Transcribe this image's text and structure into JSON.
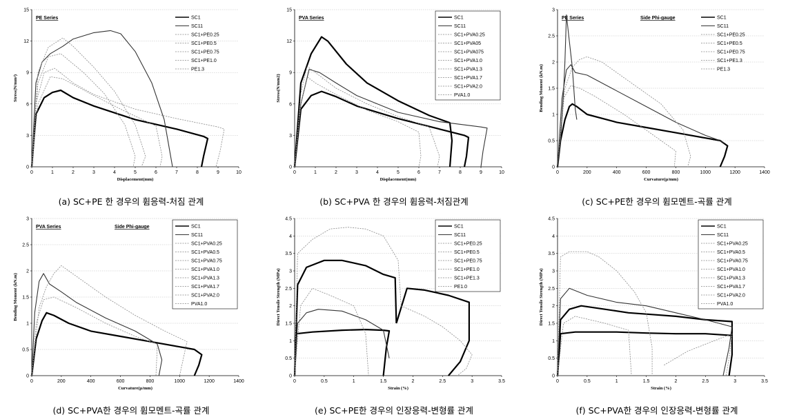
{
  "colors": {
    "bold": "#000000",
    "mid": "#333333",
    "light": "#888888",
    "grid": "#bbbbbb"
  },
  "chart_data": [
    {
      "type": "line",
      "caption": "(a) SC+PE 한 경우의 휨응력-처짐 관계",
      "tag": "PE Series",
      "tag2": "",
      "xlabel": "Displacement(mm)",
      "ylabel": "Stress(N/mm²)",
      "xlim": [
        0,
        10
      ],
      "ylim": [
        0,
        15
      ],
      "xticks": [
        0,
        1,
        2,
        3,
        4,
        5,
        6,
        7,
        8,
        9,
        10
      ],
      "yticks": [
        0,
        3,
        6,
        9,
        12,
        15
      ],
      "legend_boxed": false,
      "legend": [
        "SC1",
        "SC11",
        "SC1+PE0.25",
        "SC1+PE0.5",
        "SC1+PE0.75",
        "SC1+PE1.0",
        "PE1.3"
      ],
      "series": [
        {
          "style": "bold",
          "x": [
            0,
            0.2,
            0.6,
            1.0,
            1.4,
            2.0,
            3.0,
            5.0,
            7.0,
            8.3,
            8.5,
            8.3,
            8.2
          ],
          "y": [
            0,
            5,
            6.6,
            7.1,
            7.3,
            6.6,
            5.8,
            4.5,
            3.6,
            2.9,
            2.7,
            1.0,
            0
          ]
        },
        {
          "style": "mid",
          "x": [
            0,
            0.2,
            0.5,
            0.9,
            1.5,
            2.0,
            3.0,
            3.8,
            4.3,
            5.0,
            5.8,
            6.4,
            6.8
          ],
          "y": [
            0,
            8,
            10,
            10.8,
            11.5,
            12.2,
            12.8,
            13.0,
            12.7,
            11.0,
            8.0,
            4.5,
            0
          ]
        },
        {
          "style": "light",
          "x": [
            0,
            0.2,
            0.6,
            1.1,
            1.5,
            2.0,
            3.0,
            5.0,
            7.0,
            9.0,
            9.3,
            9.1,
            8.9
          ],
          "y": [
            0,
            6,
            9.0,
            9.4,
            8.8,
            8.0,
            6.9,
            5.5,
            4.6,
            3.8,
            3.6,
            1.5,
            0
          ]
        },
        {
          "style": "light",
          "x": [
            0,
            0.3,
            0.8,
            1.5,
            2.0,
            3.0,
            4.0,
            5.0,
            5.5,
            5.3
          ],
          "y": [
            0,
            9,
            11.4,
            12.3,
            11.5,
            9.5,
            7.2,
            4.0,
            1.0,
            0
          ]
        },
        {
          "style": "light",
          "x": [
            0,
            0.3,
            0.8,
            1.4,
            2.5,
            3.5,
            4.5,
            5.0,
            4.9
          ],
          "y": [
            0,
            8,
            10.5,
            10.8,
            9.0,
            7.0,
            4.0,
            1.0,
            0
          ]
        },
        {
          "style": "light",
          "x": [
            0,
            0.3,
            0.9,
            1.5,
            3.0,
            4.5,
            6.0,
            6.3,
            6.2
          ],
          "y": [
            0,
            6,
            8.6,
            8.4,
            6.8,
            5.3,
            3.9,
            1.0,
            0
          ]
        }
      ]
    },
    {
      "type": "line",
      "caption": "(b) SC+PVA 한 경우의 휨응력-처짐관계",
      "tag": "PVA Series",
      "tag2": "",
      "xlabel": "Displacement(mm)",
      "ylabel": "Stress(N/mm2)",
      "xlim": [
        0,
        10
      ],
      "ylim": [
        0,
        15
      ],
      "xticks": [
        0,
        1,
        2,
        3,
        4,
        5,
        6,
        7,
        8,
        9,
        10
      ],
      "yticks": [
        0,
        3,
        6,
        9,
        12,
        15
      ],
      "legend_boxed": true,
      "legend": [
        "SC1",
        "SC11",
        "SC1+PVA0.25",
        "SC1+PVA05",
        "SC1+PVA075",
        "SC1+PVA1.0",
        "SC1+PVA1.3",
        "SC1+PVA1.7",
        "SC1+PVA2.0",
        "PVA1.0"
      ],
      "series": [
        {
          "style": "bold",
          "x": [
            0,
            0.3,
            0.8,
            1.3,
            2.0,
            3.0,
            5.0,
            7.0,
            8.2,
            8.4,
            8.3,
            8.2
          ],
          "y": [
            0,
            5.5,
            6.8,
            7.2,
            6.7,
            5.8,
            4.6,
            3.6,
            3.0,
            2.8,
            1.0,
            0
          ]
        },
        {
          "style": "bold",
          "x": [
            0,
            0.3,
            0.8,
            1.3,
            1.6,
            2.5,
            3.5,
            5.0,
            6.5,
            7.5,
            7.6,
            7.5
          ],
          "y": [
            0,
            8,
            10.8,
            12.4,
            12.0,
            9.8,
            8.0,
            6.3,
            4.9,
            4.2,
            2.5,
            0
          ]
        },
        {
          "style": "mid",
          "x": [
            0,
            0.3,
            0.7,
            1.2,
            2.0,
            3.0,
            5.0,
            7.0,
            9.0,
            9.3,
            9.1,
            9.0
          ],
          "y": [
            0,
            6,
            9.3,
            9.0,
            8.0,
            6.8,
            5.2,
            4.3,
            3.8,
            3.7,
            1.5,
            0
          ]
        },
        {
          "style": "light",
          "x": [
            0,
            0.3,
            0.6,
            1.0,
            2.0,
            3.5,
            5.0,
            6.5,
            7.0,
            6.9
          ],
          "y": [
            0,
            7,
            9.6,
            9.0,
            7.5,
            6.0,
            4.8,
            3.8,
            1.0,
            0
          ]
        },
        {
          "style": "light",
          "x": [
            0,
            0.3,
            0.6,
            1.0,
            2.0,
            3.5,
            5.0,
            6.0,
            6.1,
            6.0
          ],
          "y": [
            0,
            6,
            8.6,
            8.0,
            6.9,
            5.4,
            4.3,
            3.3,
            1.0,
            0
          ]
        }
      ]
    },
    {
      "type": "line",
      "caption": "(c) SC+PE한 경우의 휨모멘트-곡률 관계",
      "tag": "PE Series",
      "tag2": "Side Phi-gauge",
      "xlabel": "Curvature(μ/mm)",
      "ylabel": "Bending Moment (kN.m)",
      "xlim": [
        0,
        1400
      ],
      "ylim": [
        0,
        3
      ],
      "xticks": [
        0,
        200,
        400,
        600,
        800,
        1000,
        1200,
        1400
      ],
      "yticks": [
        0,
        0.5,
        1,
        1.5,
        2,
        2.5,
        3
      ],
      "legend_boxed": false,
      "legend": [
        "SC1",
        "SC11",
        "SC1+PE0.25",
        "SC1+PE0.5",
        "SC1+PE0.75",
        "SC1+PE1.3",
        "PE1.3"
      ],
      "series": [
        {
          "style": "bold",
          "x": [
            0,
            20,
            50,
            80,
            100,
            130,
            200,
            400,
            600,
            800,
            1000,
            1100,
            1150,
            1130,
            1100
          ],
          "y": [
            0,
            0.5,
            0.9,
            1.15,
            1.2,
            1.15,
            1.0,
            0.85,
            0.75,
            0.65,
            0.55,
            0.5,
            0.4,
            0.2,
            0
          ]
        },
        {
          "style": "mid",
          "x": [
            0,
            30,
            60,
            90,
            120,
            200,
            400,
            600,
            800,
            1000,
            1100,
            1130
          ],
          "y": [
            0,
            1.3,
            1.85,
            1.95,
            1.8,
            1.75,
            1.45,
            1.15,
            0.85,
            0.6,
            0.5,
            0.45
          ]
        },
        {
          "style": "light",
          "x": [
            0,
            50,
            100,
            150,
            200,
            300,
            500,
            700,
            850,
            900,
            880
          ],
          "y": [
            0,
            1.5,
            1.9,
            2.05,
            2.1,
            2.0,
            1.6,
            1.2,
            0.7,
            0.2,
            0
          ]
        },
        {
          "style": "light",
          "x": [
            0,
            40,
            90,
            150,
            250,
            450,
            650,
            800,
            790
          ],
          "y": [
            0,
            1.3,
            1.55,
            1.5,
            1.35,
            1.0,
            0.6,
            0.3,
            0
          ]
        },
        {
          "style": "mid",
          "x": [
            0,
            20,
            40,
            50,
            60,
            80,
            100,
            120,
            130
          ],
          "y": [
            0,
            0.5,
            1.4,
            2.0,
            2.9,
            2.4,
            1.9,
            1.1,
            0.9
          ]
        }
      ]
    },
    {
      "type": "line",
      "caption": "(d) SC+PVA한 경우의 휨모멘트-곡률 관계",
      "tag": "PVA Series",
      "tag2": "Side Phi-gauge",
      "xlabel": "Curvature(μ/mm)",
      "ylabel": "Bending Moment (kN.m)",
      "xlim": [
        0,
        1400
      ],
      "ylim": [
        0,
        3
      ],
      "xticks": [
        0,
        200,
        400,
        600,
        800,
        1000,
        1200,
        1400
      ],
      "yticks": [
        0,
        0.5,
        1,
        1.5,
        2,
        2.5,
        3
      ],
      "legend_boxed": true,
      "legend": [
        "SC1",
        "SC11",
        "SC1+PVA0.25",
        "SC1+PVA0.5",
        "SC1+PVA0.75",
        "SC1+PVA1.0",
        "SC1+PVA1.3",
        "SC1+PVA1.7",
        "SC1+PVA2.0",
        "PVA1.0"
      ],
      "series": [
        {
          "style": "bold",
          "x": [
            0,
            30,
            70,
            100,
            150,
            250,
            400,
            600,
            800,
            1000,
            1100,
            1150,
            1130,
            1100
          ],
          "y": [
            0,
            0.7,
            1.05,
            1.2,
            1.15,
            1.0,
            0.85,
            0.75,
            0.65,
            0.55,
            0.5,
            0.4,
            0.2,
            0
          ]
        },
        {
          "style": "mid",
          "x": [
            0,
            20,
            50,
            80,
            120,
            200,
            300,
            500,
            700,
            850,
            880,
            860
          ],
          "y": [
            0,
            1.2,
            1.8,
            1.95,
            1.75,
            1.6,
            1.4,
            1.1,
            0.85,
            0.6,
            0.3,
            0
          ]
        },
        {
          "style": "light",
          "x": [
            0,
            50,
            100,
            150,
            200,
            300,
            500,
            700,
            900,
            1050,
            1000
          ],
          "y": [
            0,
            1.3,
            1.7,
            1.95,
            2.1,
            1.9,
            1.5,
            1.15,
            0.85,
            0.65,
            0
          ]
        },
        {
          "style": "light",
          "x": [
            0,
            30,
            80,
            150,
            300,
            500,
            700,
            850,
            840
          ],
          "y": [
            0,
            1.0,
            1.45,
            1.5,
            1.3,
            1.0,
            0.75,
            0.6,
            0
          ]
        }
      ]
    },
    {
      "type": "line",
      "caption": "(e) SC+PE한 경우의 인장응력-변형률 관계",
      "tag": "",
      "tag2": "",
      "xlabel": "Strain (%)",
      "ylabel": "Direct Tensile Strength (MPa)",
      "xlim": [
        0,
        3.5
      ],
      "ylim": [
        0,
        4.5
      ],
      "xticks": [
        0,
        0.5,
        1,
        1.5,
        2,
        2.5,
        3,
        3.5
      ],
      "yticks": [
        0,
        0.5,
        1,
        1.5,
        2,
        2.5,
        3,
        3.5,
        4,
        4.5
      ],
      "legend_boxed": true,
      "legend": [
        "SC1",
        "SC11",
        "SC1+PE0.25",
        "SC1+PE0.5",
        "SC1+PE0.75",
        "SC1+PE1.0",
        "SC1+PE1.3",
        "PE1.0"
      ],
      "series": [
        {
          "style": "bold",
          "x": [
            0,
            0.03,
            0.3,
            0.8,
            1.2,
            1.5,
            1.6,
            1.55,
            1.5
          ],
          "y": [
            0,
            1.2,
            1.25,
            1.3,
            1.32,
            1.3,
            1.28,
            0.8,
            0
          ],
          "mark": "line"
        },
        {
          "style": "bold",
          "x": [
            0,
            0.05,
            0.2,
            0.5,
            0.8,
            1.2,
            1.5,
            1.7,
            1.72
          ],
          "y": [
            0,
            2.6,
            3.1,
            3.3,
            3.3,
            3.15,
            2.9,
            2.8,
            1.5
          ]
        },
        {
          "style": "bold",
          "x": [
            1.72,
            1.9,
            2.2,
            2.6,
            2.95,
            2.95,
            2.8,
            2.6
          ],
          "y": [
            1.5,
            2.5,
            2.45,
            2.3,
            2.1,
            1.0,
            0.4,
            0
          ]
        },
        {
          "style": "mid",
          "x": [
            0,
            0.05,
            0.2,
            0.4,
            0.8,
            1.2,
            1.5,
            1.6
          ],
          "y": [
            0,
            1.5,
            1.8,
            1.9,
            1.85,
            1.6,
            1.3,
            0.5
          ]
        },
        {
          "style": "light",
          "x": [
            0,
            0.05,
            0.3,
            0.6,
            0.9,
            1.2,
            1.5,
            1.75,
            1.8
          ],
          "y": [
            0,
            3.5,
            3.9,
            4.2,
            4.25,
            4.2,
            4.0,
            3.3,
            2.0
          ]
        },
        {
          "style": "light",
          "x": [
            0,
            0.1,
            0.3,
            0.6,
            1.0,
            1.2,
            1.25
          ],
          "y": [
            0,
            2.0,
            2.5,
            2.3,
            2.0,
            1.2,
            0
          ]
        },
        {
          "style": "light",
          "x": [
            1.8,
            2.2,
            2.5,
            2.8,
            3.0,
            2.9,
            2.75
          ],
          "y": [
            2.0,
            1.7,
            1.4,
            1.0,
            0.6,
            0.2,
            0
          ]
        }
      ]
    },
    {
      "type": "line",
      "caption": "(f) SC+PVA한 경우의 인장응력-변형률 관계",
      "tag": "",
      "tag2": "",
      "xlabel": "Strain (%)",
      "ylabel": "Direct Tensile Strength (MPa)",
      "xlim": [
        0,
        3.5
      ],
      "ylim": [
        0,
        4.5
      ],
      "xticks": [
        0,
        0.5,
        1,
        1.5,
        2,
        2.5,
        3,
        3.5
      ],
      "yticks": [
        0,
        0.5,
        1,
        1.5,
        2,
        2.5,
        3,
        3.5,
        4,
        4.5
      ],
      "legend_boxed": true,
      "legend": [
        "SC1",
        "SC11",
        "SC1+PVA0.25",
        "SC1+PVA0.5",
        "SC1+PVA0.75",
        "SC1+PVA1.0",
        "SC1+PVA1.3",
        "SC1+PVA1.7",
        "SC1+PVA2.0",
        "PVA1.0"
      ],
      "series": [
        {
          "style": "bold",
          "x": [
            0,
            0.05,
            0.3,
            0.6,
            1.0,
            1.5,
            2.0,
            2.5,
            2.95,
            2.95,
            2.9
          ],
          "y": [
            0,
            1.2,
            1.25,
            1.25,
            1.25,
            1.22,
            1.2,
            1.2,
            1.15,
            0.6,
            0
          ]
        },
        {
          "style": "bold",
          "x": [
            0,
            0.05,
            0.2,
            0.4,
            0.8,
            1.2,
            1.6,
            2.0,
            2.5,
            2.95,
            2.95
          ],
          "y": [
            0,
            1.6,
            1.9,
            2.0,
            1.9,
            1.8,
            1.75,
            1.7,
            1.6,
            1.55,
            1.0
          ]
        },
        {
          "style": "mid",
          "x": [
            0,
            0.05,
            0.2,
            0.5,
            1.0,
            1.5,
            2.0,
            2.5,
            2.95,
            2.9,
            2.8
          ],
          "y": [
            0,
            2.2,
            2.5,
            2.3,
            2.1,
            2.0,
            1.8,
            1.6,
            1.4,
            0.8,
            0
          ]
        },
        {
          "style": "light",
          "x": [
            0,
            0.05,
            0.2,
            0.5,
            0.7,
            1.0,
            1.3,
            1.5,
            1.6,
            1.6
          ],
          "y": [
            0,
            3.4,
            3.55,
            3.55,
            3.4,
            3.0,
            2.4,
            1.8,
            0.8,
            0
          ]
        },
        {
          "style": "light",
          "x": [
            0,
            0.1,
            0.3,
            0.8,
            1.2,
            1.25
          ],
          "y": [
            0,
            1.5,
            1.7,
            1.5,
            1.3,
            0
          ]
        },
        {
          "style": "light",
          "x": [
            1.8,
            2.2,
            2.5,
            2.8,
            2.95,
            2.9,
            2.85
          ],
          "y": [
            0.3,
            0.7,
            0.9,
            1.1,
            1.2,
            0.5,
            0
          ]
        }
      ]
    }
  ]
}
